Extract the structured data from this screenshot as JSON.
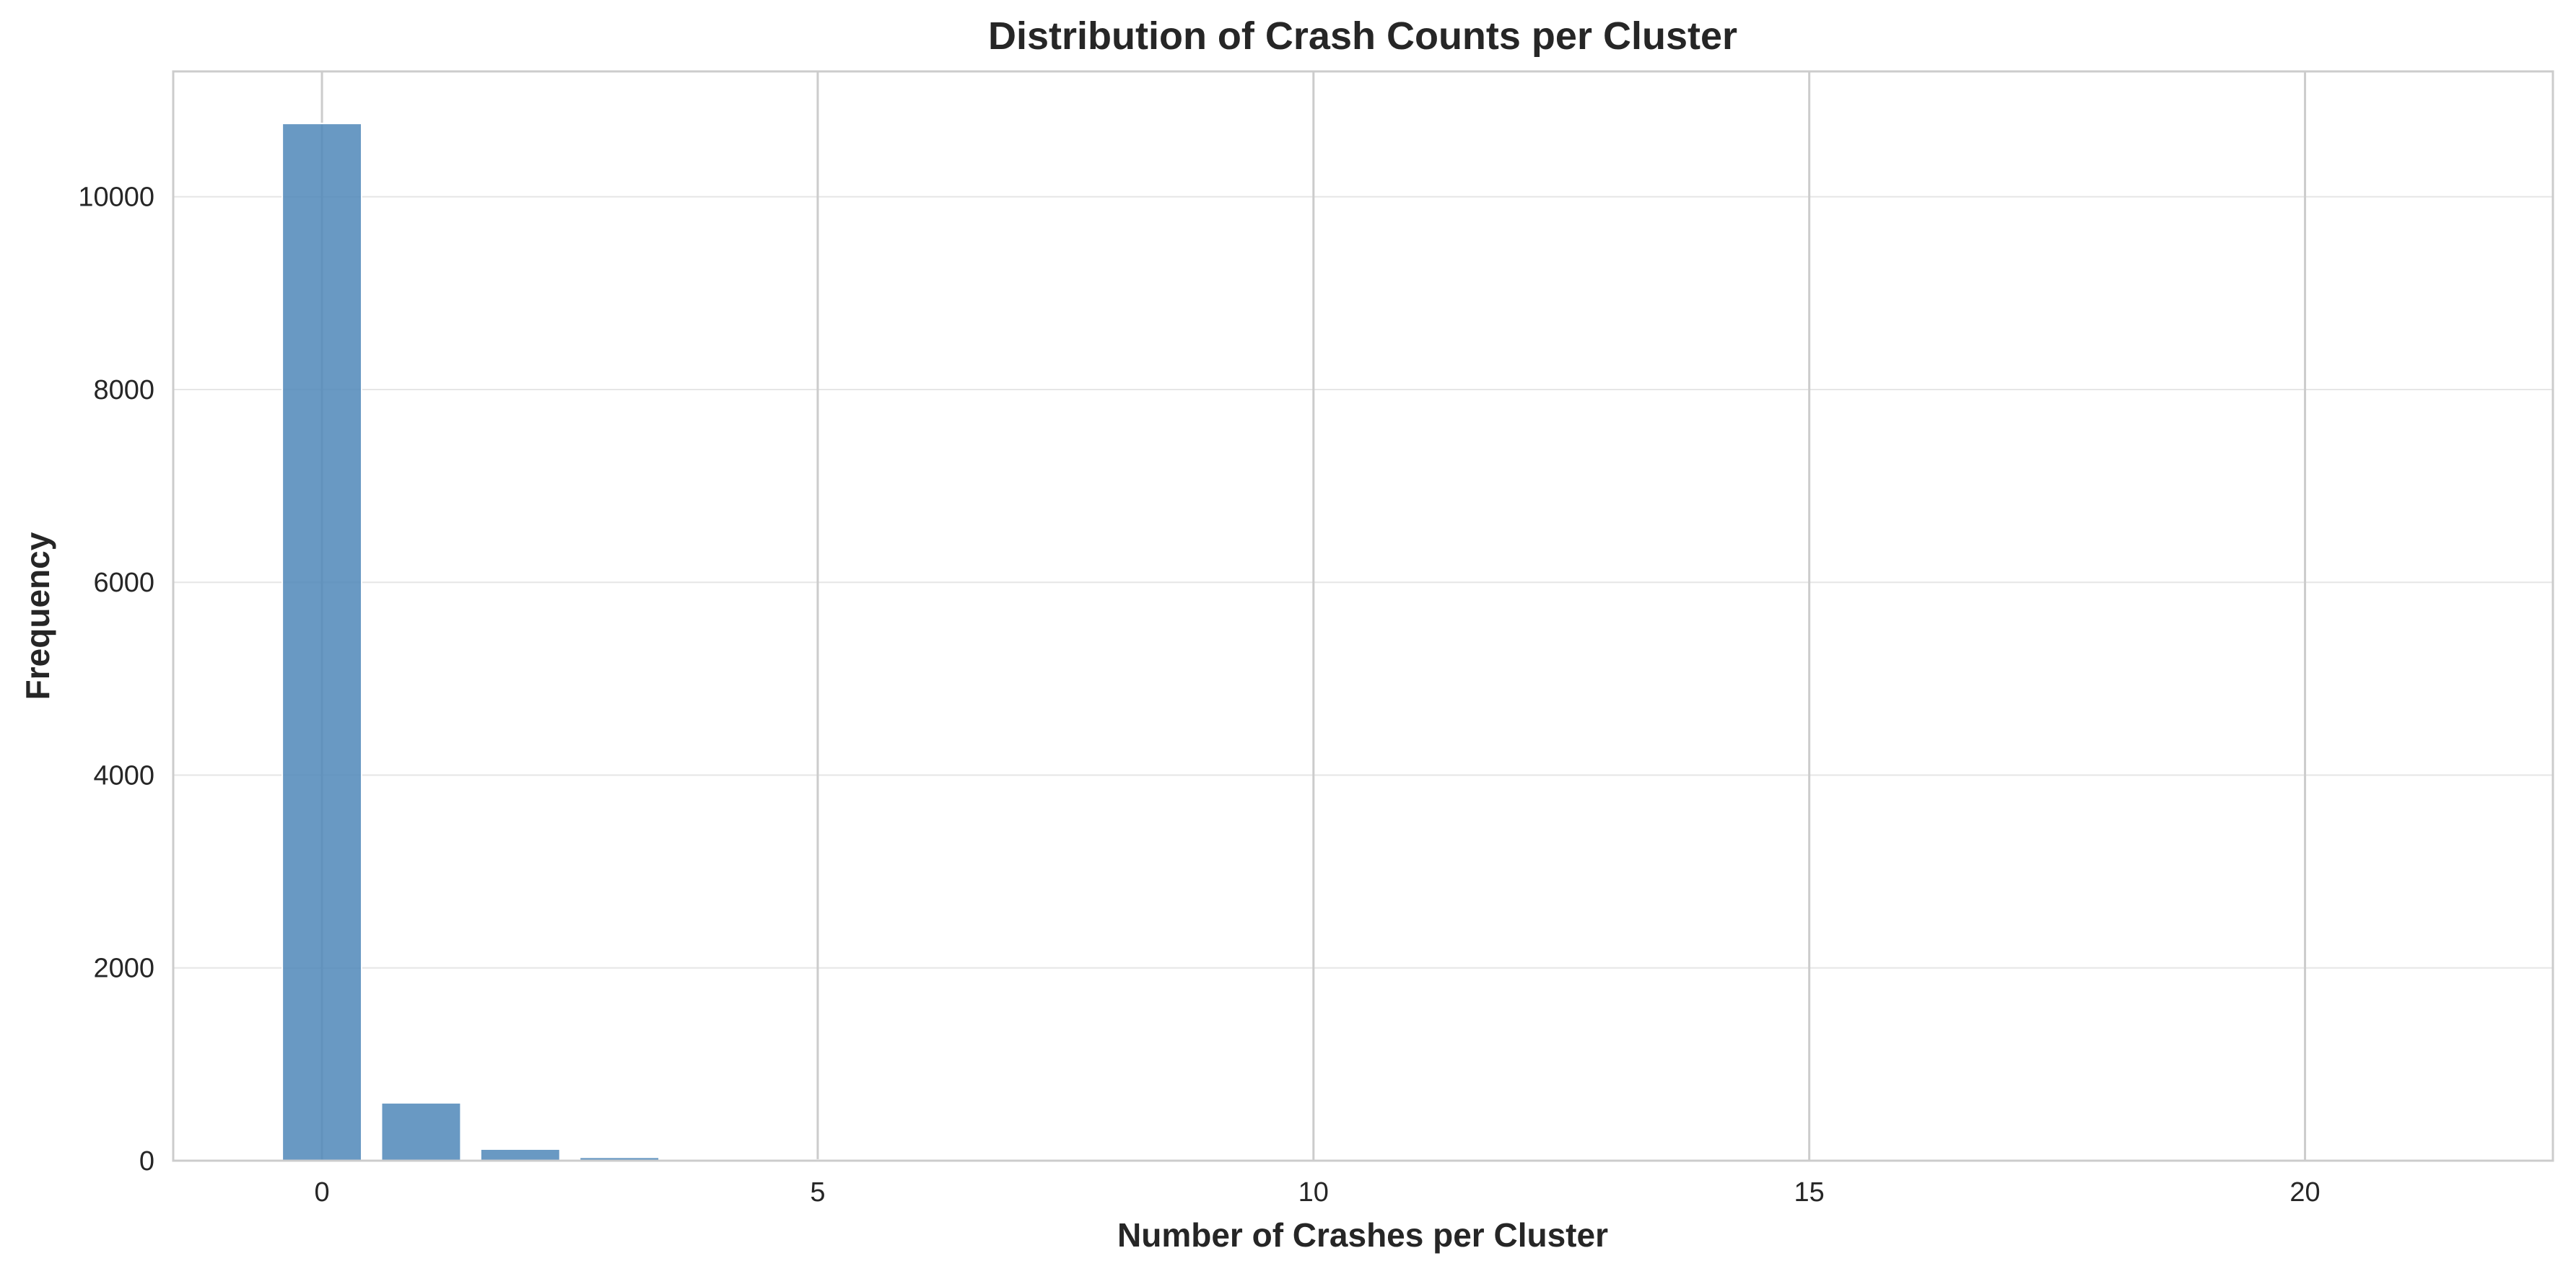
{
  "chart_data": {
    "type": "bar",
    "title": "Distribution of Crash Counts per Cluster",
    "xlabel": "Number of Crashes per Cluster",
    "ylabel": "Frequency",
    "x": [
      0,
      1,
      2,
      3,
      4,
      5,
      6,
      7,
      8,
      9,
      10,
      11,
      12,
      13,
      14,
      15,
      16,
      17,
      18,
      19,
      20,
      21
    ],
    "values": [
      10760,
      600,
      120,
      35,
      15,
      8,
      4,
      2,
      1,
      1,
      1,
      0,
      0,
      0,
      0,
      0,
      0,
      0,
      0,
      0,
      0,
      0
    ],
    "xlim": [
      -1.5,
      22.5
    ],
    "ylim": [
      0,
      11300
    ],
    "xticks": [
      0,
      5,
      10,
      15,
      20
    ],
    "yticks": [
      0,
      2000,
      4000,
      6000,
      8000,
      10000
    ],
    "xtick_labels": [
      "0",
      "5",
      "10",
      "15",
      "20"
    ],
    "ytick_labels": [
      "0",
      "2000",
      "4000",
      "6000",
      "8000",
      "10000"
    ],
    "grid": true,
    "legend": "none",
    "bar_color": "#4f87b8",
    "background": "#ffffff",
    "grid_color": "#e6e6e6",
    "spine_color": "#cccccc"
  }
}
